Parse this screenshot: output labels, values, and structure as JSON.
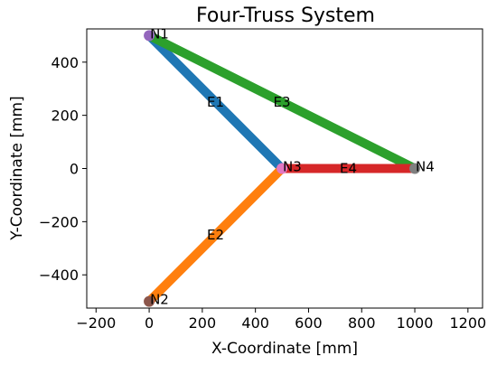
{
  "chart_data": {
    "type": "line",
    "title": "Four-Truss System",
    "xlabel": "X-Coordinate [mm]",
    "ylabel": "Y-Coordinate [mm]",
    "xlim": [
      -235,
      1255
    ],
    "ylim": [
      -525,
      525
    ],
    "xticks": [
      -200,
      0,
      200,
      400,
      600,
      800,
      1000,
      1200
    ],
    "yticks": [
      -400,
      -200,
      0,
      200,
      400
    ],
    "grid": false,
    "nodes": [
      {
        "name": "N1",
        "x": 0,
        "y": 500,
        "color": "#9467bd"
      },
      {
        "name": "N2",
        "x": 0,
        "y": -500,
        "color": "#8c564b"
      },
      {
        "name": "N3",
        "x": 500,
        "y": 0,
        "color": "#e377c2"
      },
      {
        "name": "N4",
        "x": 1000,
        "y": 0,
        "color": "#7f7f7f"
      }
    ],
    "elements": [
      {
        "name": "E1",
        "from": "N1",
        "to": "N3",
        "color": "#1f77b4"
      },
      {
        "name": "E2",
        "from": "N2",
        "to": "N3",
        "color": "#ff7f0e"
      },
      {
        "name": "E3",
        "from": "N1",
        "to": "N4",
        "color": "#2ca02c"
      },
      {
        "name": "E4",
        "from": "N3",
        "to": "N4",
        "color": "#d62728"
      }
    ]
  }
}
